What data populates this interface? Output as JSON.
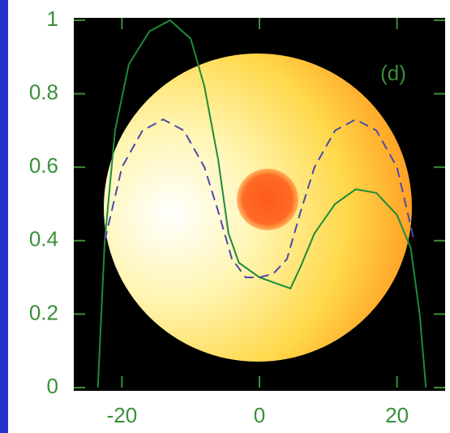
{
  "chart_data": {
    "type": "line",
    "annotation": "(d)",
    "xlim": [
      -27,
      27
    ],
    "xticks": [
      -20,
      0,
      20
    ],
    "ylim": [
      0,
      1
    ],
    "yticks": [
      0,
      0.2,
      0.4,
      0.6,
      0.8,
      1
    ],
    "series": [
      {
        "color": "#1f8a3a",
        "style": "solid",
        "x": [
          -23.5,
          -22.5,
          -21,
          -19,
          -16,
          -13,
          -10,
          -8,
          -6,
          -4.5,
          -3,
          0,
          3,
          4.5,
          6,
          8,
          11,
          14,
          17,
          20,
          22,
          23.3,
          24.2
        ],
        "values": [
          0,
          0.4,
          0.7,
          0.88,
          0.97,
          1.0,
          0.95,
          0.82,
          0.62,
          0.42,
          0.34,
          0.3,
          0.28,
          0.27,
          0.33,
          0.42,
          0.5,
          0.54,
          0.53,
          0.47,
          0.38,
          0.2,
          0
        ]
      },
      {
        "color": "#4a4aa8",
        "style": "dashed",
        "x": [
          -22.5,
          -20,
          -17,
          -14,
          -11,
          -8,
          -6,
          -4,
          -2,
          0,
          2,
          4,
          6,
          8,
          11,
          14,
          17,
          20,
          22.5
        ],
        "values": [
          0.4,
          0.6,
          0.7,
          0.73,
          0.7,
          0.6,
          0.48,
          0.35,
          0.3,
          0.3,
          0.31,
          0.35,
          0.48,
          0.6,
          0.7,
          0.73,
          0.7,
          0.6,
          0.4
        ]
      }
    ]
  }
}
